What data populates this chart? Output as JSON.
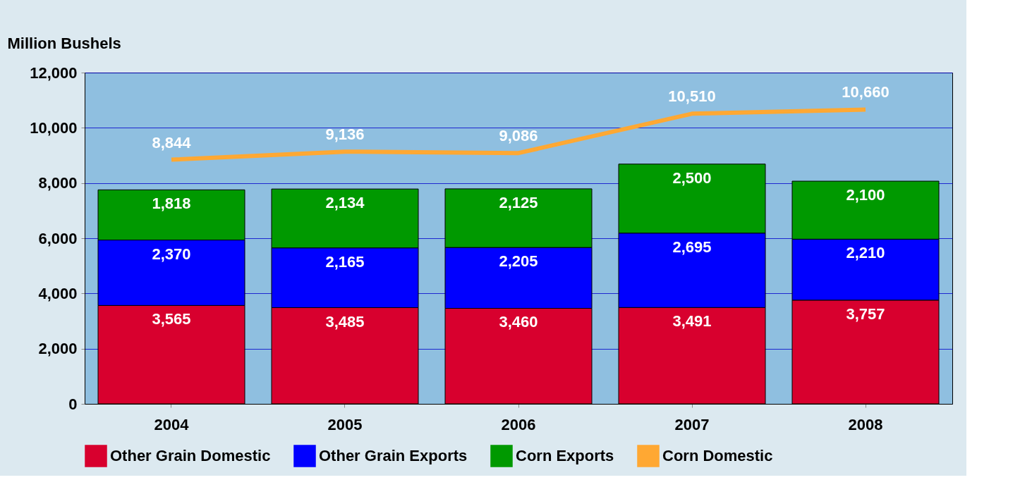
{
  "chart_data": {
    "type": "bar",
    "stacked": true,
    "ylabel": "Million Bushels",
    "categories": [
      "2004",
      "2005",
      "2006",
      "2007",
      "2008"
    ],
    "series": [
      {
        "name": "Other Grain Domestic",
        "color": "#d8002e",
        "values": [
          3565,
          3485,
          3460,
          3491,
          3757
        ],
        "value_labels": [
          "3,565",
          "3,485",
          "3,460",
          "3,491",
          "3,757"
        ]
      },
      {
        "name": "Other Grain Exports",
        "color": "#0000ff",
        "values": [
          2370,
          2165,
          2205,
          2695,
          2210
        ],
        "value_labels": [
          "2,370",
          "2,165",
          "2,205",
          "2,695",
          "2,210"
        ]
      },
      {
        "name": "Corn Exports",
        "color": "#009900",
        "values": [
          1818,
          2134,
          2125,
          2500,
          2100
        ],
        "value_labels": [
          "1,818",
          "2,134",
          "2,125",
          "2,500",
          "2,100"
        ]
      },
      {
        "name": "Corn Domestic",
        "type": "line",
        "color": "#ffa833",
        "values": [
          8844,
          9136,
          9086,
          10510,
          10660
        ],
        "value_labels": [
          "8,844",
          "9,136",
          "9,086",
          "10,510",
          "10,660"
        ]
      }
    ],
    "ylim": [
      0,
      12000
    ],
    "yticks": [
      0,
      {
        "value": 2000,
        "label": "2,000"
      },
      {
        "value": 4000,
        "label": "4,000"
      },
      {
        "value": 6000,
        "label": "6,000"
      },
      {
        "value": 8000,
        "label": "8,000"
      },
      {
        "value": 10000,
        "label": "10,000"
      },
      {
        "value": 12000,
        "label": "12,000"
      }
    ],
    "grid": "y",
    "legend": "bottom"
  }
}
